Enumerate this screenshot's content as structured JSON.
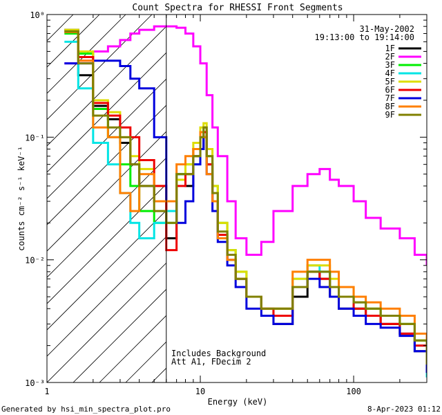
{
  "chart_data": {
    "type": "line",
    "title": "Count Spectra for RHESSI Front Segments",
    "xlabel": "Energy (keV)",
    "ylabel": "counts cm⁻² s⁻¹ keV⁻¹",
    "x_scale": "log",
    "y_scale": "log",
    "xlim": [
      1,
      300
    ],
    "ylim": [
      0.001,
      1
    ],
    "x_tick_labels": [
      "1",
      "10",
      "100"
    ],
    "y_tick_labels": [
      "10⁻³",
      "10⁻²",
      "10⁻¹",
      "10⁰"
    ],
    "legend_position": "top-right",
    "date": "31-May-2002",
    "time_range": "19:13:00 to 19:14:00",
    "vertical_marker_keV": 6,
    "hatched_region_keV": [
      1,
      6
    ],
    "annotation_lines": [
      "Includes Background",
      "Att A1, FDecim 2"
    ],
    "footer_left": "Generated by hsi_min_spectra_plot.pro",
    "footer_right": "8-Apr-2023 01:12",
    "series": [
      {
        "name": "1F",
        "color": "#000000",
        "energy": [
          1.3,
          1.6,
          2,
          2.5,
          3,
          3.5,
          4,
          5,
          6,
          7,
          8,
          9,
          10,
          10.5,
          11,
          12,
          13,
          15,
          17,
          20,
          25,
          30,
          40,
          50,
          60,
          70,
          80,
          100,
          120,
          150,
          200,
          250,
          300
        ],
        "counts": [
          0.75,
          0.32,
          0.18,
          0.14,
          0.09,
          0.06,
          0.04,
          0.03,
          0.015,
          0.05,
          0.04,
          0.07,
          0.08,
          0.1,
          0.06,
          0.03,
          0.015,
          0.01,
          0.007,
          0.005,
          0.004,
          0.003,
          0.005,
          0.008,
          0.007,
          0.005,
          0.004,
          0.004,
          0.0035,
          0.003,
          0.0025,
          0.0018,
          0.0012
        ]
      },
      {
        "name": "2F",
        "color": "#ff00ff",
        "energy": [
          1.3,
          1.6,
          2,
          2.5,
          3,
          3.5,
          4,
          5,
          6,
          7,
          8,
          9,
          10,
          11,
          12,
          13,
          15,
          17,
          20,
          25,
          30,
          40,
          50,
          60,
          70,
          80,
          100,
          120,
          150,
          200,
          250,
          300
        ],
        "counts": [
          0.4,
          0.42,
          0.5,
          0.55,
          0.62,
          0.7,
          0.75,
          0.8,
          0.8,
          0.78,
          0.7,
          0.55,
          0.4,
          0.22,
          0.12,
          0.07,
          0.03,
          0.015,
          0.011,
          0.014,
          0.025,
          0.04,
          0.05,
          0.055,
          0.045,
          0.04,
          0.03,
          0.022,
          0.018,
          0.015,
          0.011,
          0.009
        ]
      },
      {
        "name": "3F",
        "color": "#00ee00",
        "energy": [
          1.3,
          1.6,
          2,
          2.5,
          3,
          3.5,
          4,
          5,
          6,
          7,
          8,
          9,
          10,
          10.5,
          11,
          12,
          13,
          15,
          17,
          20,
          25,
          30,
          40,
          50,
          60,
          70,
          80,
          100,
          120,
          150,
          200,
          250,
          300
        ],
        "counts": [
          0.7,
          0.48,
          0.17,
          0.1,
          0.06,
          0.04,
          0.025,
          0.02,
          0.02,
          0.05,
          0.06,
          0.08,
          0.1,
          0.12,
          0.07,
          0.04,
          0.02,
          0.012,
          0.008,
          0.005,
          0.004,
          0.004,
          0.006,
          0.008,
          0.008,
          0.006,
          0.005,
          0.004,
          0.004,
          0.0035,
          0.003,
          0.0022,
          0.0014
        ]
      },
      {
        "name": "4F",
        "color": "#00e5e5",
        "energy": [
          1.3,
          1.6,
          2,
          2.5,
          3,
          3.5,
          4,
          5,
          6,
          7,
          8,
          9,
          10,
          10.5,
          11,
          12,
          13,
          15,
          17,
          20,
          25,
          30,
          40,
          50,
          60,
          70,
          80,
          100,
          120,
          150,
          200,
          250,
          300
        ],
        "counts": [
          0.6,
          0.25,
          0.09,
          0.06,
          0.035,
          0.02,
          0.015,
          0.02,
          0.025,
          0.05,
          0.05,
          0.06,
          0.1,
          0.11,
          0.06,
          0.03,
          0.015,
          0.01,
          0.007,
          0.005,
          0.004,
          0.004,
          0.007,
          0.009,
          0.008,
          0.006,
          0.005,
          0.0045,
          0.004,
          0.0035,
          0.003,
          0.002,
          0.0011
        ]
      },
      {
        "name": "5F",
        "color": "#dddd00",
        "energy": [
          1.3,
          1.6,
          2,
          2.5,
          3,
          3.5,
          4,
          5,
          6,
          7,
          8,
          9,
          10,
          10.5,
          11,
          12,
          13,
          15,
          17,
          20,
          25,
          30,
          40,
          50,
          60,
          70,
          80,
          100,
          120,
          150,
          200,
          250,
          300
        ],
        "counts": [
          0.75,
          0.5,
          0.2,
          0.16,
          0.1,
          0.07,
          0.055,
          0.04,
          0.03,
          0.045,
          0.06,
          0.09,
          0.12,
          0.13,
          0.08,
          0.04,
          0.02,
          0.012,
          0.008,
          0.005,
          0.004,
          0.004,
          0.007,
          0.009,
          0.009,
          0.007,
          0.006,
          0.0045,
          0.004,
          0.0035,
          0.003,
          0.0022,
          0.0014
        ]
      },
      {
        "name": "6F",
        "color": "#ee0000",
        "energy": [
          1.3,
          1.6,
          2,
          2.5,
          3,
          3.5,
          4,
          5,
          6,
          7,
          8,
          9,
          10,
          10.5,
          11,
          12,
          13,
          15,
          17,
          20,
          25,
          30,
          40,
          50,
          60,
          70,
          80,
          100,
          120,
          150,
          200,
          250,
          300
        ],
        "counts": [
          0.72,
          0.45,
          0.19,
          0.15,
          0.12,
          0.1,
          0.065,
          0.04,
          0.012,
          0.04,
          0.05,
          0.08,
          0.1,
          0.11,
          0.06,
          0.03,
          0.016,
          0.01,
          0.007,
          0.005,
          0.004,
          0.0035,
          0.006,
          0.008,
          0.007,
          0.006,
          0.005,
          0.004,
          0.0035,
          0.003,
          0.0025,
          0.002,
          0.0013
        ]
      },
      {
        "name": "7F",
        "color": "#0000dd",
        "energy": [
          1.3,
          1.6,
          2,
          2.5,
          3,
          3.5,
          4,
          5,
          6,
          7,
          8,
          9,
          10,
          10.5,
          11,
          12,
          13,
          15,
          17,
          20,
          25,
          30,
          40,
          50,
          60,
          70,
          80,
          100,
          120,
          150,
          200,
          250,
          300
        ],
        "counts": [
          0.4,
          0.4,
          0.42,
          0.42,
          0.38,
          0.3,
          0.25,
          0.1,
          0.03,
          0.02,
          0.03,
          0.06,
          0.08,
          0.1,
          0.05,
          0.025,
          0.014,
          0.009,
          0.006,
          0.004,
          0.0035,
          0.003,
          0.006,
          0.007,
          0.006,
          0.005,
          0.004,
          0.0035,
          0.003,
          0.0028,
          0.0024,
          0.0018,
          0.0012
        ]
      },
      {
        "name": "8F",
        "color": "#ff7f00",
        "energy": [
          1.3,
          1.6,
          2,
          2.5,
          3,
          3.5,
          4,
          5,
          6,
          7,
          8,
          9,
          10,
          10.5,
          11,
          12,
          13,
          15,
          17,
          20,
          25,
          30,
          40,
          50,
          60,
          70,
          80,
          100,
          120,
          150,
          200,
          250,
          300
        ],
        "counts": [
          0.72,
          0.42,
          0.12,
          0.1,
          0.035,
          0.025,
          0.05,
          0.03,
          0.03,
          0.06,
          0.07,
          0.08,
          0.11,
          0.1,
          0.05,
          0.03,
          0.015,
          0.01,
          0.007,
          0.005,
          0.004,
          0.004,
          0.008,
          0.01,
          0.01,
          0.008,
          0.006,
          0.005,
          0.0045,
          0.004,
          0.0035,
          0.0025,
          0.0015
        ]
      },
      {
        "name": "9F",
        "color": "#808000",
        "energy": [
          1.3,
          1.6,
          2,
          2.5,
          3,
          3.5,
          4,
          5,
          6,
          7,
          8,
          9,
          10,
          10.5,
          11,
          12,
          13,
          15,
          17,
          20,
          25,
          30,
          40,
          50,
          60,
          70,
          80,
          100,
          120,
          150,
          200,
          250,
          300
        ],
        "counts": [
          0.73,
          0.4,
          0.15,
          0.12,
          0.1,
          0.06,
          0.04,
          0.025,
          0.02,
          0.05,
          0.05,
          0.07,
          0.1,
          0.12,
          0.07,
          0.035,
          0.017,
          0.011,
          0.007,
          0.005,
          0.004,
          0.004,
          0.006,
          0.008,
          0.008,
          0.006,
          0.005,
          0.0045,
          0.004,
          0.0035,
          0.003,
          0.0022,
          0.0014
        ]
      }
    ]
  }
}
